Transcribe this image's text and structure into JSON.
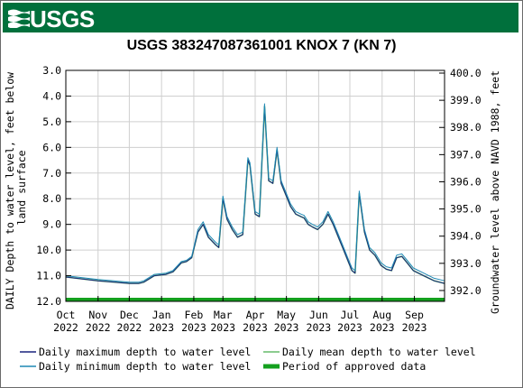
{
  "banner": {
    "logo_text": "USGS",
    "color": "#00703c"
  },
  "chart_data": {
    "type": "line",
    "title": "USGS 383247087361001 KNOX 7 (KN 7)",
    "ylabel_left": "DAILY Depth to water level, feet below land surface",
    "ylabel_right": "Groundwater level above NAVD 1988, feet",
    "y_left_ticks": [
      "3.0",
      "4.0",
      "5.0",
      "6.0",
      "7.0",
      "8.0",
      "9.0",
      "10.0",
      "11.0",
      "12.0"
    ],
    "y_right_ticks": [
      "392.0",
      "393.0",
      "394.0",
      "395.0",
      "396.0",
      "397.0",
      "398.0",
      "399.0",
      "400.0"
    ],
    "ylim_left": [
      3.0,
      12.0
    ],
    "ylim_left_inverted": true,
    "ylim_right": [
      391.6,
      400.1
    ],
    "x_ticks": [
      {
        "month": "Oct",
        "year": "2022"
      },
      {
        "month": "Nov",
        "year": "2022"
      },
      {
        "month": "Dec",
        "year": "2022"
      },
      {
        "month": "Jan",
        "year": "2023"
      },
      {
        "month": "Feb",
        "year": "2023"
      },
      {
        "month": "Mar",
        "year": "2023"
      },
      {
        "month": "Apr",
        "year": "2023"
      },
      {
        "month": "May",
        "year": "2023"
      },
      {
        "month": "Jun",
        "year": "2023"
      },
      {
        "month": "Jul",
        "year": "2023"
      },
      {
        "month": "Aug",
        "year": "2023"
      },
      {
        "month": "Sep",
        "year": "2023"
      }
    ],
    "xlim": [
      "2022-10-01",
      "2023-09-30"
    ],
    "grid": true,
    "series": [
      {
        "name": "Daily maximum depth to water level",
        "color": "#1a237e",
        "x": [
          "2022-10-01",
          "2022-11-01",
          "2022-12-01",
          "2022-12-10",
          "2022-12-15",
          "2022-12-25",
          "2023-01-05",
          "2023-01-12",
          "2023-01-20",
          "2023-01-25",
          "2023-01-30",
          "2023-02-05",
          "2023-02-10",
          "2023-02-15",
          "2023-02-22",
          "2023-02-25",
          "2023-03-01",
          "2023-03-05",
          "2023-03-10",
          "2023-03-15",
          "2023-03-20",
          "2023-03-25",
          "2023-03-27",
          "2023-04-01",
          "2023-04-05",
          "2023-04-10",
          "2023-04-14",
          "2023-04-18",
          "2023-04-22",
          "2023-04-26",
          "2023-05-01",
          "2023-05-05",
          "2023-05-10",
          "2023-05-15",
          "2023-05-18",
          "2023-05-22",
          "2023-05-26",
          "2023-05-31",
          "2023-06-05",
          "2023-06-10",
          "2023-06-15",
          "2023-06-20",
          "2023-06-25",
          "2023-06-30",
          "2023-07-03",
          "2023-07-06",
          "2023-07-10",
          "2023-07-15",
          "2023-07-20",
          "2023-07-25",
          "2023-07-31",
          "2023-08-05",
          "2023-08-10",
          "2023-08-15",
          "2023-08-20",
          "2023-08-25",
          "2023-08-31",
          "2023-09-10",
          "2023-09-20",
          "2023-09-30"
        ],
        "values": [
          11.05,
          11.2,
          11.3,
          11.3,
          11.25,
          11.0,
          10.95,
          10.85,
          10.5,
          10.45,
          10.3,
          9.3,
          9.0,
          9.5,
          9.8,
          9.9,
          8.0,
          8.8,
          9.2,
          9.5,
          9.4,
          6.5,
          6.7,
          8.6,
          8.7,
          4.4,
          7.3,
          7.4,
          6.1,
          7.4,
          7.9,
          8.3,
          8.6,
          8.7,
          8.75,
          9.0,
          9.1,
          9.2,
          9.0,
          8.6,
          9.0,
          9.5,
          10.0,
          10.5,
          10.8,
          10.9,
          7.8,
          9.3,
          10.0,
          10.2,
          10.6,
          10.75,
          10.8,
          10.3,
          10.25,
          10.5,
          10.8,
          11.0,
          11.2,
          11.3
        ]
      },
      {
        "name": "Daily mean depth to water level",
        "color": "#66bb6a",
        "x": [
          "2022-10-01",
          "2022-11-01",
          "2022-12-01",
          "2022-12-10",
          "2022-12-15",
          "2022-12-25",
          "2023-01-05",
          "2023-01-12",
          "2023-01-20",
          "2023-01-25",
          "2023-01-30",
          "2023-02-05",
          "2023-02-10",
          "2023-02-15",
          "2023-02-22",
          "2023-02-25",
          "2023-03-01",
          "2023-03-05",
          "2023-03-10",
          "2023-03-15",
          "2023-03-20",
          "2023-03-25",
          "2023-03-27",
          "2023-04-01",
          "2023-04-05",
          "2023-04-10",
          "2023-04-14",
          "2023-04-18",
          "2023-04-22",
          "2023-04-26",
          "2023-05-01",
          "2023-05-05",
          "2023-05-10",
          "2023-05-15",
          "2023-05-18",
          "2023-05-22",
          "2023-05-26",
          "2023-05-31",
          "2023-06-05",
          "2023-06-10",
          "2023-06-15",
          "2023-06-20",
          "2023-06-25",
          "2023-06-30",
          "2023-07-03",
          "2023-07-06",
          "2023-07-10",
          "2023-07-15",
          "2023-07-20",
          "2023-07-25",
          "2023-07-31",
          "2023-08-05",
          "2023-08-10",
          "2023-08-15",
          "2023-08-20",
          "2023-08-25",
          "2023-08-31",
          "2023-09-10",
          "2023-09-20",
          "2023-09-30"
        ],
        "values": [
          11.05,
          11.2,
          11.3,
          11.3,
          11.25,
          11.0,
          10.95,
          10.85,
          10.5,
          10.45,
          10.3,
          9.3,
          9.0,
          9.5,
          9.8,
          9.9,
          8.0,
          8.8,
          9.2,
          9.5,
          9.4,
          6.5,
          6.7,
          8.6,
          8.7,
          4.4,
          7.3,
          7.4,
          6.1,
          7.4,
          7.9,
          8.3,
          8.6,
          8.7,
          8.75,
          9.0,
          9.1,
          9.2,
          9.0,
          8.6,
          9.0,
          9.5,
          10.0,
          10.5,
          10.8,
          10.9,
          7.8,
          9.3,
          10.0,
          10.2,
          10.6,
          10.75,
          10.8,
          10.3,
          10.25,
          10.5,
          10.8,
          11.0,
          11.2,
          11.3
        ]
      },
      {
        "name": "Daily minimum depth to water level",
        "color": "#1e88b4",
        "x": [
          "2022-10-01",
          "2022-11-01",
          "2022-12-01",
          "2022-12-10",
          "2022-12-15",
          "2022-12-25",
          "2023-01-05",
          "2023-01-12",
          "2023-01-20",
          "2023-01-25",
          "2023-01-30",
          "2023-02-05",
          "2023-02-10",
          "2023-02-15",
          "2023-02-22",
          "2023-02-25",
          "2023-03-01",
          "2023-03-05",
          "2023-03-10",
          "2023-03-15",
          "2023-03-20",
          "2023-03-25",
          "2023-03-27",
          "2023-04-01",
          "2023-04-05",
          "2023-04-10",
          "2023-04-14",
          "2023-04-18",
          "2023-04-22",
          "2023-04-26",
          "2023-05-01",
          "2023-05-05",
          "2023-05-10",
          "2023-05-15",
          "2023-05-18",
          "2023-05-22",
          "2023-05-26",
          "2023-05-31",
          "2023-06-05",
          "2023-06-10",
          "2023-06-15",
          "2023-06-20",
          "2023-06-25",
          "2023-06-30",
          "2023-07-03",
          "2023-07-06",
          "2023-07-10",
          "2023-07-15",
          "2023-07-20",
          "2023-07-25",
          "2023-07-31",
          "2023-08-05",
          "2023-08-10",
          "2023-08-15",
          "2023-08-20",
          "2023-08-25",
          "2023-08-31",
          "2023-09-10",
          "2023-09-20",
          "2023-09-30"
        ],
        "values": [
          11.0,
          11.15,
          11.25,
          11.25,
          11.2,
          10.95,
          10.9,
          10.8,
          10.45,
          10.4,
          10.25,
          9.2,
          8.9,
          9.4,
          9.7,
          9.8,
          7.9,
          8.7,
          9.1,
          9.4,
          9.3,
          6.4,
          6.6,
          8.5,
          8.6,
          4.3,
          7.2,
          7.3,
          6.0,
          7.3,
          7.8,
          8.2,
          8.5,
          8.6,
          8.65,
          8.9,
          9.0,
          9.1,
          8.9,
          8.5,
          8.9,
          9.4,
          9.9,
          10.4,
          10.7,
          10.8,
          7.7,
          9.2,
          9.9,
          10.1,
          10.5,
          10.65,
          10.7,
          10.2,
          10.15,
          10.4,
          10.7,
          10.9,
          11.1,
          11.2
        ]
      }
    ],
    "approved_period": {
      "name": "Period of approved data",
      "color": "#14a01e",
      "from": "2022-10-01",
      "to": "2023-09-30"
    },
    "legend_placement": "bottom"
  }
}
